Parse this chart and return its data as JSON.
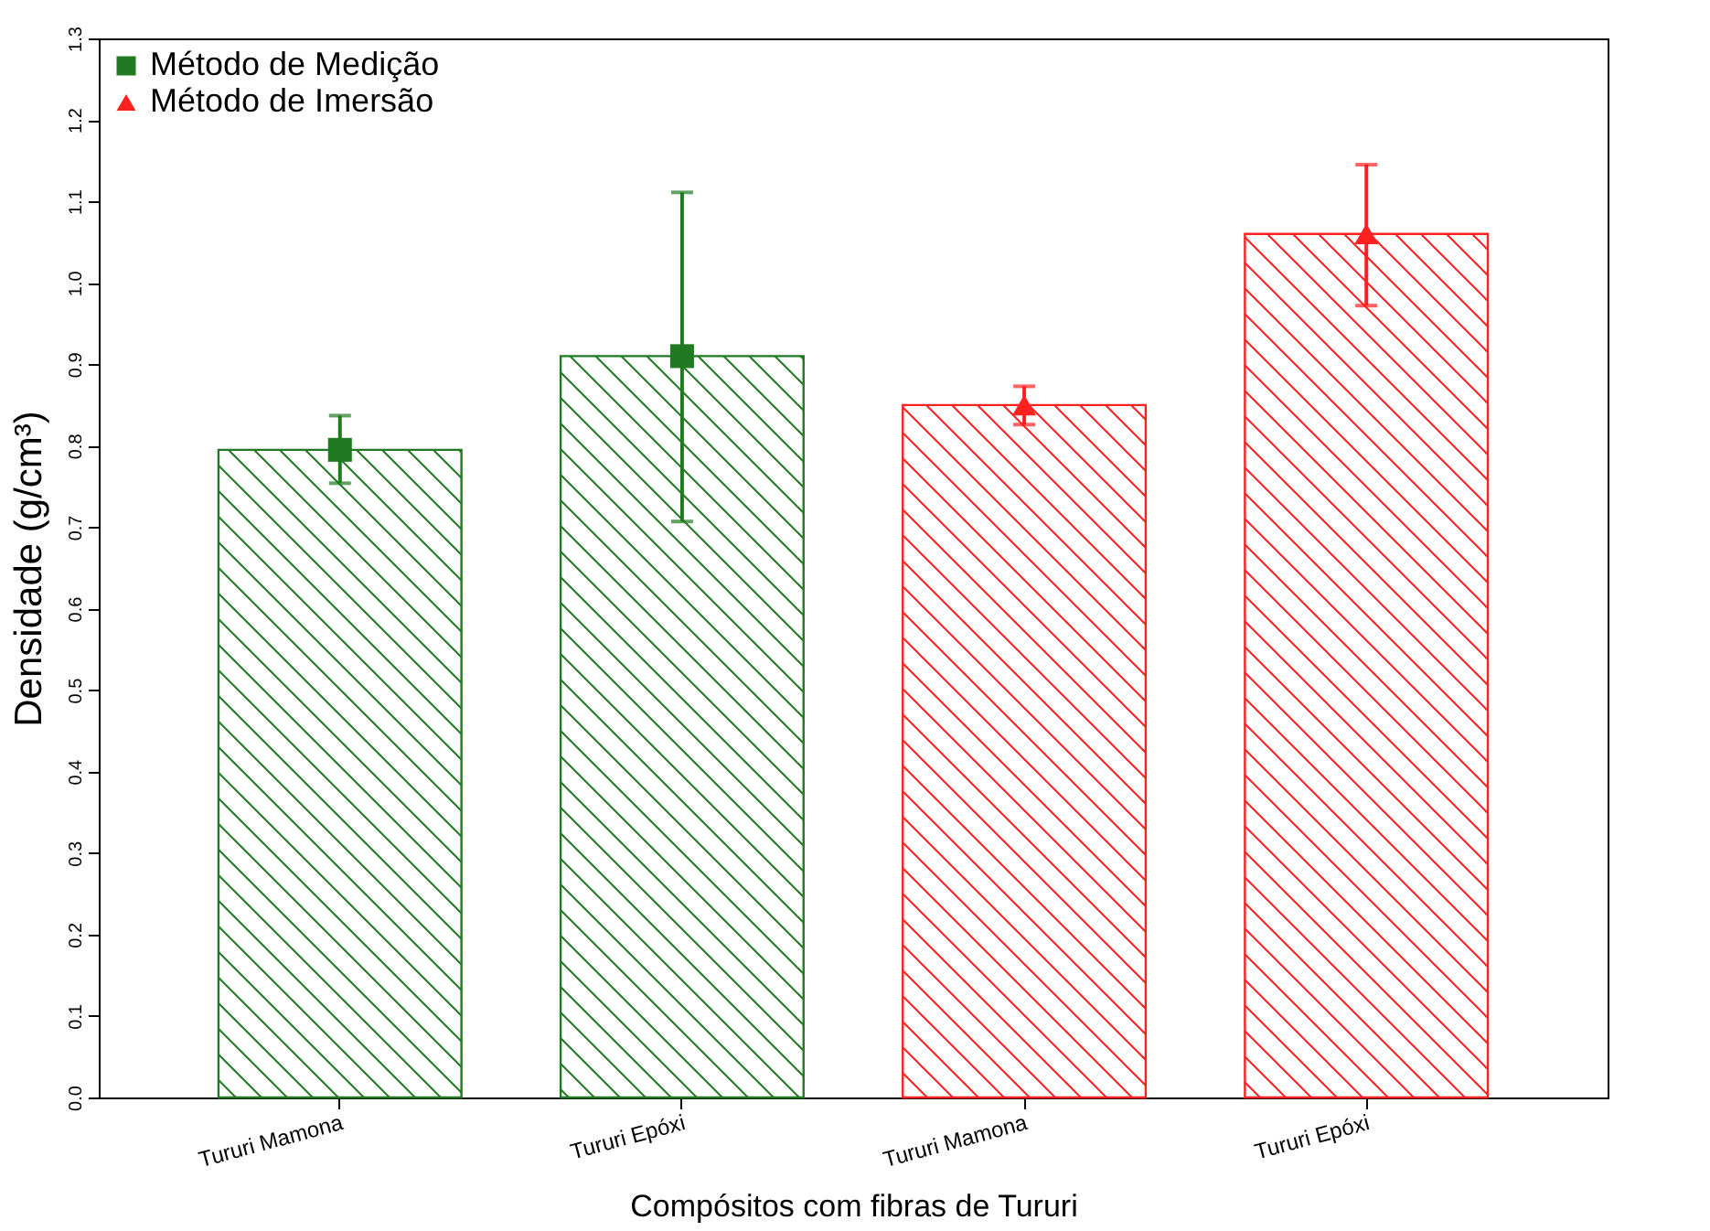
{
  "chart_data": {
    "type": "bar",
    "xlabel": "Compósitos com fibras de Tururi",
    "ylabel": "Densidade (g/cm³)",
    "categories": [
      "Tururi Mamona",
      "Tururi Epóxi",
      "Tururi Mamona",
      "Tururi Epóxi"
    ],
    "ylim": [
      0,
      1.3
    ],
    "yticks": [
      {
        "value": 0,
        "label": "0.0"
      },
      0.1,
      0.2,
      0.3,
      0.4,
      0.5,
      0.6,
      0.7,
      0.8,
      0.9,
      {
        "value": 1,
        "label": "1.0"
      },
      1.1,
      1.2,
      1.3
    ],
    "legend": "top left",
    "grid": false,
    "series": [
      {
        "color": "#217a21",
        "values": [
          0.795,
          0.91,
          null,
          null
        ]
      },
      {
        "color": "#ff2020",
        "values": [
          null,
          null,
          0.85,
          1.06
        ]
      },
      {
        "type": "scatter",
        "name": "Método de Medição",
        "color": "#217a21",
        "marker": "square",
        "values": [
          0.795,
          0.91,
          null,
          null
        ],
        "errors": [
          [
            0.754,
            0.837
          ],
          [
            0.707,
            1.111
          ],
          null,
          null
        ]
      },
      {
        "type": "scatter",
        "name": "Método de Imersão",
        "color": "#ff2020",
        "marker": "triangle",
        "values": [
          null,
          null,
          0.85,
          1.06
        ],
        "errors": [
          null,
          null,
          [
            0.826,
            0.873
          ],
          [
            0.972,
            1.145
          ]
        ]
      }
    ]
  }
}
